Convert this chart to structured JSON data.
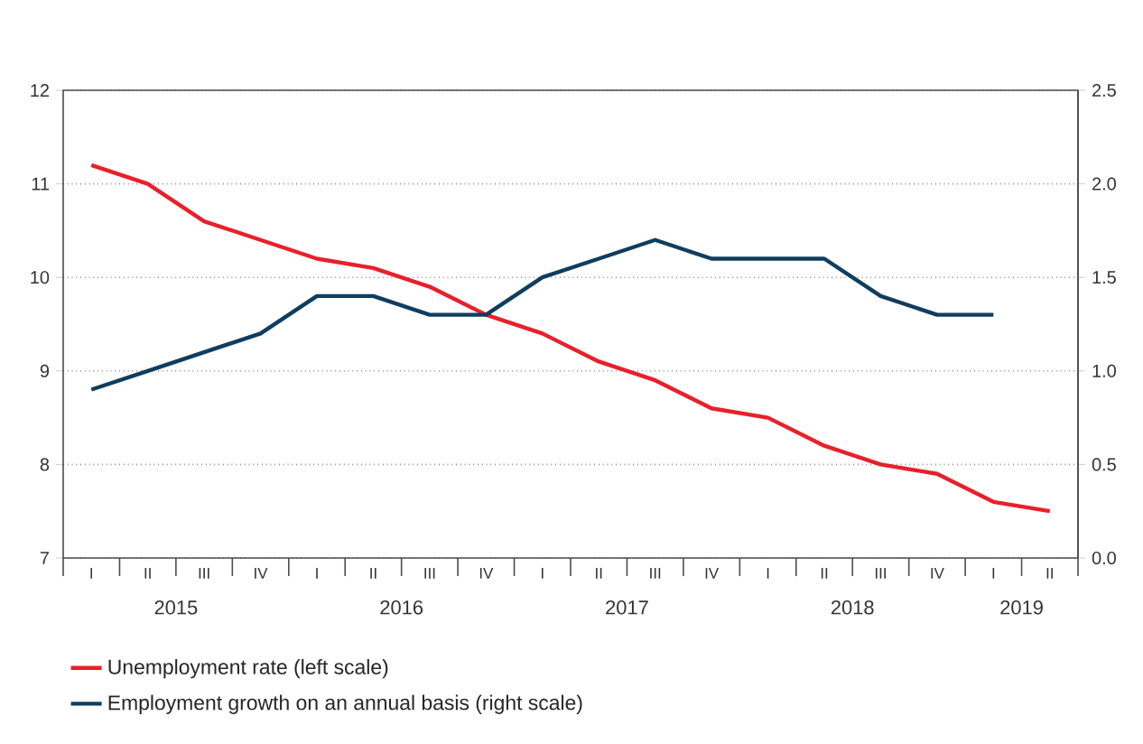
{
  "chart_data": {
    "type": "line",
    "categories": [
      "I",
      "II",
      "III",
      "IV",
      "I",
      "II",
      "III",
      "IV",
      "I",
      "II",
      "III",
      "IV",
      "I",
      "II",
      "III",
      "IV",
      "I",
      "II"
    ],
    "annotations": [
      "2015",
      "2016",
      "2017",
      "2018",
      "2019"
    ],
    "ylim": [
      7,
      12
    ],
    "yticks": [
      7,
      8,
      9,
      10,
      11,
      12
    ],
    "y2lim": [
      0,
      2.5
    ],
    "y2ticks": [
      {
        "value": 0,
        "label": "0.0"
      },
      0.5,
      {
        "value": 1,
        "label": "1.0"
      },
      1.5,
      {
        "value": 2,
        "label": "2.0"
      },
      2.5
    ],
    "grid": "y",
    "legend": "bottom",
    "series": [
      {
        "name": "Unemployment rate (left scale)",
        "color": "#e8202a",
        "values": [
          11.2,
          11.0,
          10.6,
          10.4,
          10.2,
          10.1,
          9.9,
          9.6,
          9.4,
          9.1,
          8.9,
          8.6,
          8.5,
          8.2,
          8.0,
          7.9,
          7.6,
          7.5
        ]
      },
      {
        "name": "Employment growth on an annual basis (right scale)",
        "color": "#0f3d5e",
        "axis": "y2",
        "values": [
          0.9,
          1.0,
          1.1,
          1.2,
          1.4,
          1.4,
          1.3,
          1.3,
          1.5,
          1.6,
          1.7,
          1.6,
          1.6,
          1.6,
          1.4,
          1.3,
          1.3,
          null
        ]
      }
    ]
  }
}
